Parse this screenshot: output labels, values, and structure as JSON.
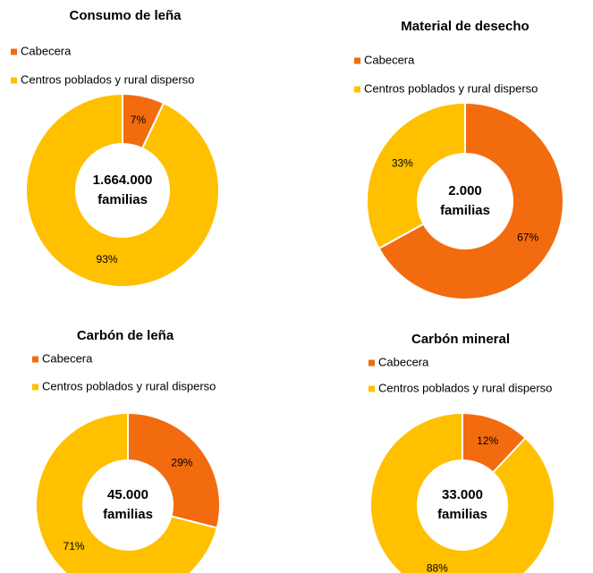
{
  "chart_data": [
    {
      "type": "pie",
      "title": "Consumo de leña",
      "categories": [
        "Cabecera",
        "Centros poblados y rural disperso"
      ],
      "values": [
        7,
        93
      ],
      "value_labels": [
        "7%",
        "93%"
      ],
      "colors": [
        "#f26b0f",
        "#ffc000"
      ],
      "center_label": [
        "1.664.000",
        "familias"
      ]
    },
    {
      "type": "pie",
      "title": "Material de desecho",
      "categories": [
        "Cabecera",
        "Centros poblados y rural disperso"
      ],
      "values": [
        67,
        33
      ],
      "value_labels": [
        "67%",
        "33%"
      ],
      "colors": [
        "#f26b0f",
        "#ffc000"
      ],
      "center_label": [
        "2.000",
        "familias"
      ]
    },
    {
      "type": "pie",
      "title": "Carbón de leña",
      "categories": [
        "Cabecera",
        "Centros poblados y rural disperso"
      ],
      "values": [
        29,
        71
      ],
      "value_labels": [
        "29%",
        "71%"
      ],
      "colors": [
        "#f26b0f",
        "#ffc000"
      ],
      "center_label": [
        "45.000",
        "familias"
      ]
    },
    {
      "type": "pie",
      "title": "Carbón mineral",
      "categories": [
        "Cabecera",
        "Centros poblados y rural disperso"
      ],
      "values": [
        12,
        88
      ],
      "value_labels": [
        "12%",
        "88%"
      ],
      "colors": [
        "#f26b0f",
        "#ffc000"
      ],
      "center_label": [
        "33.000",
        "familias"
      ]
    }
  ]
}
